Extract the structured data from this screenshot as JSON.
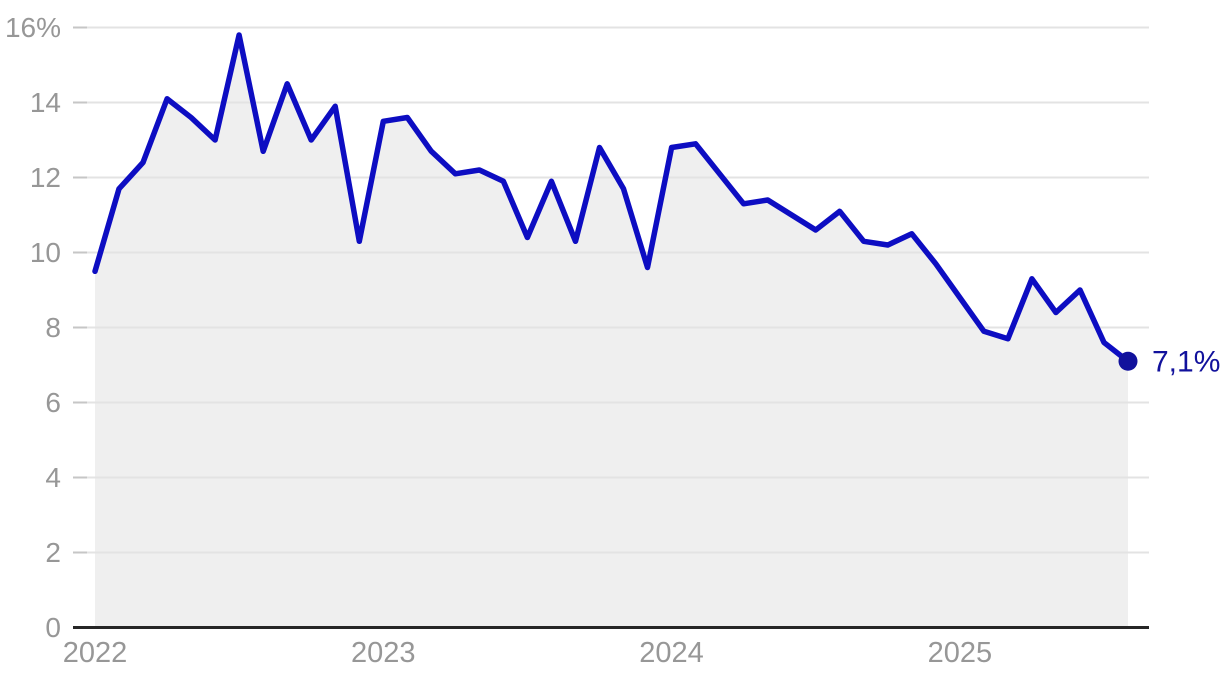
{
  "chart_data": {
    "type": "line",
    "title": "",
    "unit": "%",
    "frequency": "monthly",
    "x_start": "2022-01",
    "x_end": "2025-08",
    "values": [
      9.5,
      11.7,
      12.4,
      14.1,
      13.6,
      13.0,
      15.8,
      12.7,
      14.5,
      13.0,
      13.9,
      10.3,
      13.5,
      13.6,
      12.7,
      12.1,
      12.2,
      11.9,
      10.4,
      11.9,
      10.3,
      12.8,
      11.7,
      9.6,
      12.8,
      12.9,
      12.1,
      11.3,
      11.4,
      11.0,
      10.6,
      11.1,
      10.3,
      10.2,
      10.5,
      9.7,
      8.8,
      7.9,
      7.7,
      9.3,
      8.4,
      9.0,
      7.6,
      7.1
    ],
    "x_tick_labels": [
      "2022",
      "2023",
      "2024",
      "2025"
    ],
    "x_tick_month_indices": [
      0,
      12,
      24,
      36
    ],
    "y_ticks": [
      0,
      2,
      4,
      6,
      8,
      10,
      12,
      14,
      16
    ],
    "y_tick_labels": [
      "0",
      "2",
      "4",
      "6",
      "8",
      "10",
      "12",
      "14",
      "16%"
    ],
    "ylim": [
      0,
      16
    ],
    "grid": "horizontal",
    "legend": "none",
    "end_label": "7,1%",
    "last_value": 7.1,
    "colors": {
      "line": "#0d0dc2",
      "end_dot": "#11119c",
      "end_label_text": "#11119c",
      "area_fill": "#efefef",
      "gridline": "#e3e3e3",
      "tick": "#c6c6c6",
      "axis_line": "#262626",
      "axis_text": "#979797",
      "background": "#ffffff"
    }
  }
}
